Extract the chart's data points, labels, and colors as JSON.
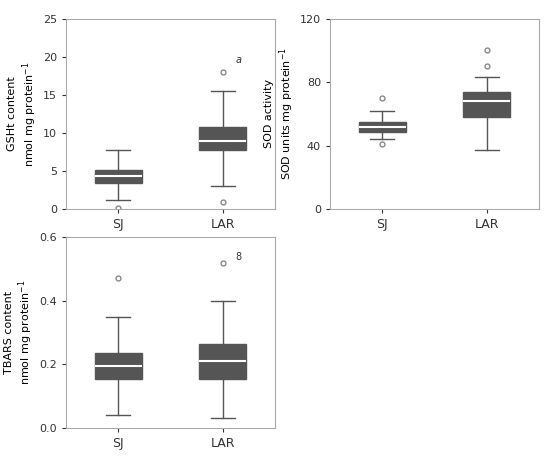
{
  "gsht": {
    "SJ": {
      "whislo": 1.2,
      "q1": 3.4,
      "med": 4.4,
      "q3": 5.1,
      "whishi": 7.8,
      "fliers_low": [
        0.2
      ],
      "fliers_high": []
    },
    "LAR": {
      "whislo": 3.0,
      "q1": 7.8,
      "med": 9.0,
      "q3": 10.8,
      "whishi": 15.5,
      "fliers_low": [
        1.0
      ],
      "fliers_high": [
        18.0
      ]
    }
  },
  "sod": {
    "SJ": {
      "whislo": 44.0,
      "q1": 48.5,
      "med": 52.0,
      "q3": 55.0,
      "whishi": 62.0,
      "fliers_low": [
        41.0
      ],
      "fliers_high": [
        70.0
      ]
    },
    "LAR": {
      "whislo": 37.0,
      "q1": 58.0,
      "med": 68.0,
      "q3": 74.0,
      "whishi": 83.0,
      "fliers_low": [],
      "fliers_high": [
        90.0,
        100.0
      ]
    }
  },
  "tbars": {
    "SJ": {
      "whislo": 0.04,
      "q1": 0.155,
      "med": 0.195,
      "q3": 0.235,
      "whishi": 0.35,
      "fliers_low": [],
      "fliers_high": [
        0.47
      ]
    },
    "LAR": {
      "whislo": 0.03,
      "q1": 0.155,
      "med": 0.21,
      "q3": 0.265,
      "whishi": 0.4,
      "fliers_low": [],
      "fliers_high": [
        0.52
      ]
    }
  },
  "box_facecolor": "#c8c8c8",
  "box_edgecolor": "#555555",
  "median_color": "#ffffff",
  "median_linewidth": 1.5,
  "whisker_color": "#555555",
  "cap_color": "#555555",
  "flier_color": "#888888",
  "linewidth": 1.0
}
